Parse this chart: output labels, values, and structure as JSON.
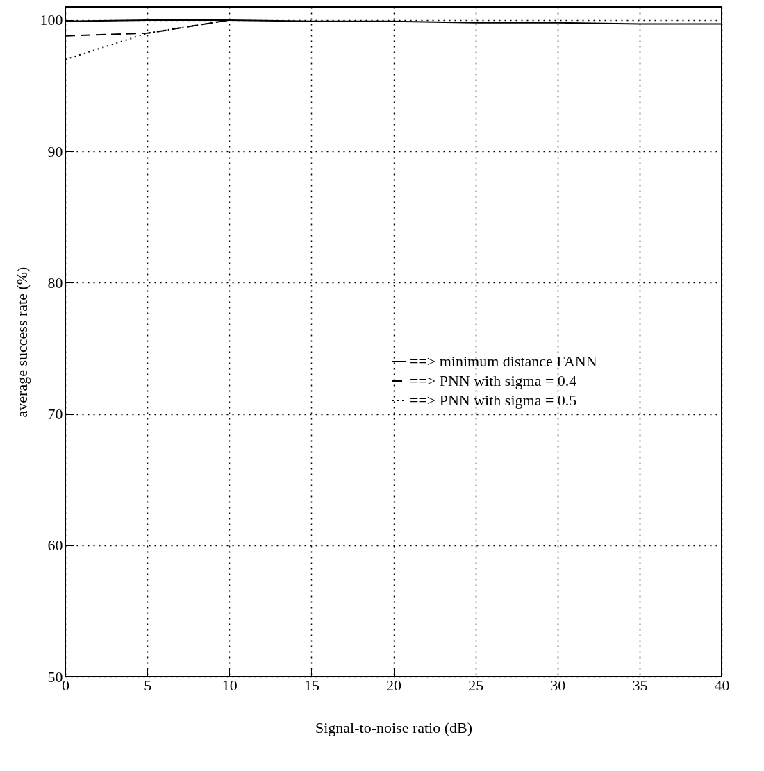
{
  "chart_data": {
    "type": "line",
    "xlabel": "Signal-to-noise ratio (dB)",
    "ylabel": "average success rate (%)",
    "x": [
      0,
      5,
      10,
      15,
      20,
      25,
      30,
      35,
      40
    ],
    "series": [
      {
        "name": "==> minimum distance FANN",
        "color": "#000000",
        "line_style": "solid",
        "values": [
          99.9,
          100,
          100,
          99.9,
          99.9,
          99.8,
          99.8,
          99.7,
          99.7
        ]
      },
      {
        "name": "==> PNN with sigma = 0.4",
        "color": "#000000",
        "line_style": "dashed",
        "values": [
          98.8,
          99.0,
          100,
          null,
          null,
          null,
          null,
          null,
          null
        ]
      },
      {
        "name": "==> PNN with sigma = 0.5",
        "color": "#000000",
        "line_style": "dotted",
        "values": [
          97.0,
          99.0,
          100,
          null,
          null,
          null,
          null,
          null,
          null
        ]
      }
    ],
    "xlim": [
      0,
      40
    ],
    "xticks": [
      0,
      5,
      10,
      15,
      20,
      25,
      30,
      35,
      40
    ],
    "ylim": [
      50,
      101
    ],
    "yticks": [
      50,
      60,
      70,
      80,
      90,
      100
    ],
    "grid": true,
    "legend": "right",
    "marker": "none"
  }
}
